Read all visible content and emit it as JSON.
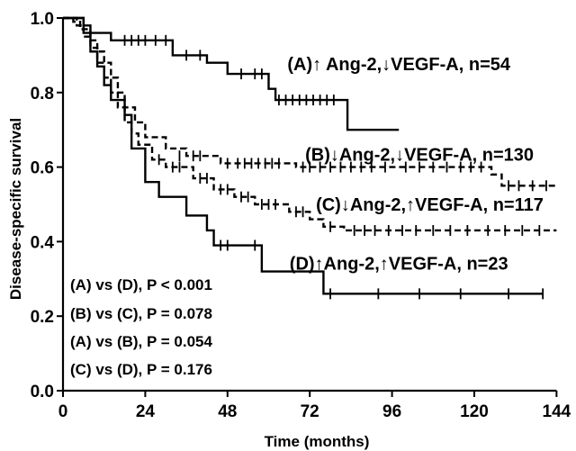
{
  "chart_data": {
    "type": "line",
    "title": "",
    "xlabel": "Time (months)",
    "ylabel": "Disease-specific survival",
    "xlim": [
      0,
      146
    ],
    "ylim": [
      0,
      1.0
    ],
    "xticks": [
      0,
      24,
      48,
      72,
      96,
      120,
      144
    ],
    "yticks": [
      0.0,
      0.2,
      0.4,
      0.6,
      0.8,
      1.0
    ],
    "x_tick_labels": [
      "0",
      "24",
      "48",
      "72",
      "96",
      "120",
      "144"
    ],
    "y_tick_labels": [
      "0.0",
      "0.2",
      "0.4",
      "0.6",
      "0.8",
      "1.0"
    ],
    "grid": false,
    "series": [
      {
        "name": "(A)↑ Ang-2,↓VEGF-A, n=54",
        "line_style": "solid",
        "steps": [
          [
            0,
            1.0
          ],
          [
            6,
            0.98
          ],
          [
            8,
            0.96
          ],
          [
            14,
            0.94
          ],
          [
            32,
            0.9
          ],
          [
            42,
            0.88
          ],
          [
            48,
            0.85
          ],
          [
            60,
            0.81
          ],
          [
            62,
            0.78
          ],
          [
            83,
            0.7
          ],
          [
            98,
            0.7
          ]
        ],
        "censored": [
          [
            18,
            0.94
          ],
          [
            20,
            0.94
          ],
          [
            22,
            0.94
          ],
          [
            24,
            0.94
          ],
          [
            27,
            0.94
          ],
          [
            30,
            0.94
          ],
          [
            36,
            0.9
          ],
          [
            40,
            0.9
          ],
          [
            52,
            0.85
          ],
          [
            56,
            0.85
          ],
          [
            58,
            0.85
          ],
          [
            63,
            0.78
          ],
          [
            65,
            0.78
          ],
          [
            67,
            0.78
          ],
          [
            69,
            0.78
          ],
          [
            71,
            0.78
          ],
          [
            73,
            0.78
          ],
          [
            75,
            0.78
          ],
          [
            77,
            0.78
          ],
          [
            79,
            0.78
          ]
        ],
        "label_pos": {
          "x": 98,
          "y": 0.86
        }
      },
      {
        "name": "(B)↓Ang-2,↓VEGF-A, n=130",
        "line_style": "dashed",
        "steps": [
          [
            0,
            1.0
          ],
          [
            3,
            0.99
          ],
          [
            5,
            0.97
          ],
          [
            8,
            0.94
          ],
          [
            10,
            0.91
          ],
          [
            12,
            0.88
          ],
          [
            14,
            0.84
          ],
          [
            16,
            0.8
          ],
          [
            18,
            0.76
          ],
          [
            21,
            0.72
          ],
          [
            24,
            0.68
          ],
          [
            30,
            0.65
          ],
          [
            36,
            0.63
          ],
          [
            46,
            0.61
          ],
          [
            65,
            0.61
          ],
          [
            68,
            0.6
          ],
          [
            98,
            0.6
          ],
          [
            125,
            0.58
          ],
          [
            128,
            0.55
          ],
          [
            144,
            0.55
          ]
        ],
        "censored": [
          [
            34,
            0.63
          ],
          [
            38,
            0.63
          ],
          [
            40,
            0.63
          ],
          [
            48,
            0.61
          ],
          [
            51,
            0.61
          ],
          [
            53,
            0.61
          ],
          [
            55,
            0.61
          ],
          [
            57,
            0.61
          ],
          [
            59,
            0.61
          ],
          [
            61,
            0.61
          ],
          [
            63,
            0.61
          ],
          [
            70,
            0.6
          ],
          [
            72,
            0.6
          ],
          [
            75,
            0.6
          ],
          [
            78,
            0.6
          ],
          [
            81,
            0.6
          ],
          [
            84,
            0.6
          ],
          [
            87,
            0.6
          ],
          [
            90,
            0.6
          ],
          [
            94,
            0.6
          ],
          [
            100,
            0.6
          ],
          [
            104,
            0.6
          ],
          [
            108,
            0.6
          ],
          [
            112,
            0.6
          ],
          [
            116,
            0.6
          ],
          [
            119,
            0.6
          ],
          [
            122,
            0.6
          ],
          [
            130,
            0.55
          ],
          [
            133,
            0.55
          ],
          [
            137,
            0.55
          ],
          [
            141,
            0.55
          ]
        ],
        "label_pos": {
          "x": 104,
          "y": 0.617
        }
      },
      {
        "name": "(C)↓Ang-2,↑VEGF-A, n=117",
        "line_style": "dashed",
        "steps": [
          [
            0,
            1.0
          ],
          [
            4,
            0.98
          ],
          [
            6,
            0.95
          ],
          [
            8,
            0.92
          ],
          [
            10,
            0.88
          ],
          [
            12,
            0.84
          ],
          [
            14,
            0.8
          ],
          [
            16,
            0.76
          ],
          [
            18,
            0.72
          ],
          [
            20,
            0.69
          ],
          [
            22,
            0.66
          ],
          [
            26,
            0.62
          ],
          [
            30,
            0.6
          ],
          [
            38,
            0.57
          ],
          [
            44,
            0.54
          ],
          [
            50,
            0.52
          ],
          [
            56,
            0.5
          ],
          [
            66,
            0.48
          ],
          [
            72,
            0.46
          ],
          [
            76,
            0.44
          ],
          [
            82,
            0.43
          ],
          [
            144,
            0.43
          ]
        ],
        "censored": [
          [
            28,
            0.62
          ],
          [
            32,
            0.6
          ],
          [
            34,
            0.6
          ],
          [
            40,
            0.57
          ],
          [
            42,
            0.57
          ],
          [
            46,
            0.54
          ],
          [
            48,
            0.54
          ],
          [
            52,
            0.52
          ],
          [
            54,
            0.52
          ],
          [
            58,
            0.5
          ],
          [
            60,
            0.5
          ],
          [
            62,
            0.5
          ],
          [
            68,
            0.48
          ],
          [
            70,
            0.48
          ],
          [
            78,
            0.44
          ],
          [
            85,
            0.43
          ],
          [
            88,
            0.43
          ],
          [
            91,
            0.43
          ],
          [
            95,
            0.43
          ],
          [
            99,
            0.43
          ],
          [
            103,
            0.43
          ],
          [
            108,
            0.43
          ],
          [
            113,
            0.43
          ],
          [
            118,
            0.43
          ],
          [
            124,
            0.43
          ],
          [
            129,
            0.43
          ],
          [
            134,
            0.43
          ],
          [
            139,
            0.43
          ]
        ],
        "label_pos": {
          "x": 107,
          "y": 0.483
        }
      },
      {
        "name": "(D)↑Ang-2,↑VEGF-A, n=23",
        "line_style": "solid",
        "steps": [
          [
            0,
            1.0
          ],
          [
            6,
            0.96
          ],
          [
            8,
            0.91
          ],
          [
            10,
            0.87
          ],
          [
            12,
            0.82
          ],
          [
            14,
            0.78
          ],
          [
            18,
            0.74
          ],
          [
            20,
            0.65
          ],
          [
            24,
            0.56
          ],
          [
            28,
            0.52
          ],
          [
            36,
            0.47
          ],
          [
            42,
            0.43
          ],
          [
            44,
            0.39
          ],
          [
            58,
            0.32
          ],
          [
            76,
            0.26
          ],
          [
            140,
            0.26
          ]
        ],
        "censored": [
          [
            46,
            0.39
          ],
          [
            48,
            0.39
          ],
          [
            56,
            0.39
          ],
          [
            78,
            0.26
          ],
          [
            92,
            0.26
          ],
          [
            104,
            0.26
          ],
          [
            116,
            0.26
          ],
          [
            130,
            0.26
          ],
          [
            140,
            0.26
          ]
        ],
        "label_pos": {
          "x": 98,
          "y": 0.325
        }
      }
    ],
    "annotations": [
      "(A) vs (D), P < 0.001",
      "(B) vs (C), P = 0.078",
      "(A) vs (B), P = 0.054",
      "(C) vs (D), P = 0.176"
    ]
  }
}
